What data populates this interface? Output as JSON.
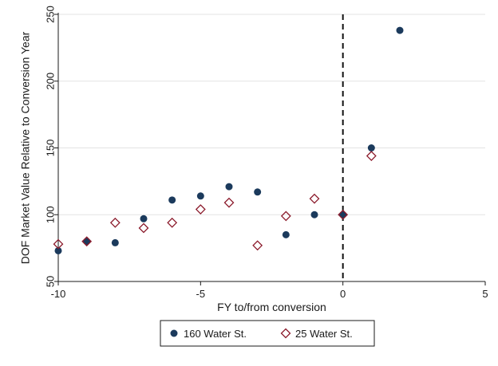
{
  "chart_data": {
    "type": "scatter",
    "title": "",
    "xlabel": "FY to/from conversion",
    "ylabel": "DOF Market Value Relative to Conversion Year",
    "xlim": [
      -10,
      5
    ],
    "ylim": [
      50,
      250
    ],
    "x_ticks": [
      -10,
      -5,
      0,
      5
    ],
    "y_ticks": [
      50,
      100,
      150,
      200,
      250
    ],
    "grid": "horizontal",
    "reference_line": {
      "x": 0,
      "style": "dashed"
    },
    "legend_position": "bottom",
    "series": [
      {
        "name": "160 Water St.",
        "marker": "filled-circle",
        "color": "#1b3a5c",
        "x": [
          -10,
          -9,
          -8,
          -7,
          -6,
          -5,
          -4,
          -3,
          -2,
          -1,
          0,
          1,
          2
        ],
        "y": [
          73,
          80,
          79,
          97,
          111,
          114,
          121,
          117,
          85,
          100,
          100,
          150,
          238
        ]
      },
      {
        "name": "25 Water St.",
        "marker": "hollow-diamond",
        "color": "#8b1a2b",
        "x": [
          -10,
          -9,
          -8,
          -7,
          -6,
          -5,
          -4,
          -3,
          -2,
          -1,
          0,
          1
        ],
        "y": [
          78,
          80,
          94,
          90,
          94,
          104,
          109,
          77,
          99,
          112,
          100,
          144
        ]
      }
    ]
  }
}
